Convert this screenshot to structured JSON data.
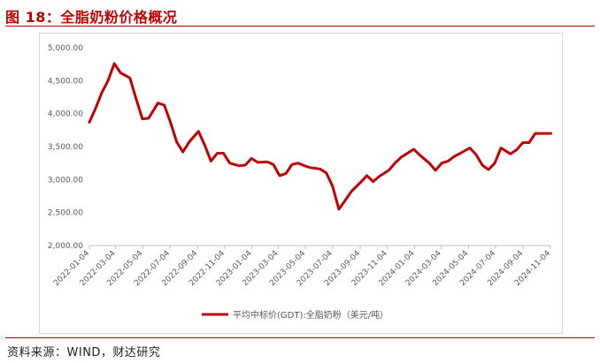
{
  "header": {
    "title": "图 18：全脂奶粉价格概况"
  },
  "footer": {
    "source": "资料来源：WIND，财达研究"
  },
  "colors": {
    "accent": "#c00000",
    "grid": "#d9d9d9",
    "series": "#c00000"
  },
  "chart_data": {
    "type": "line",
    "title": "",
    "xlabel": "",
    "ylabel": "",
    "ylim": [
      2000,
      5000
    ],
    "yticks": [
      "5,000.00",
      "4,500.00",
      "4,000.00",
      "3,500.00",
      "3,000.00",
      "2,500.00",
      "2,000.00"
    ],
    "ytick_values": [
      5000,
      4500,
      4000,
      3500,
      3000,
      2500,
      2000
    ],
    "xticks": [
      "2022-01-04",
      "2022-03-04",
      "2022-05-04",
      "2022-07-04",
      "2022-09-04",
      "2022-11-04",
      "2023-01-04",
      "2023-03-04",
      "2023-05-04",
      "2023-07-04",
      "2023-09-04",
      "2023-11-04",
      "2024-01-04",
      "2024-03-04",
      "2024-05-04",
      "2024-07-04",
      "2024-09-04",
      "2024-11-04"
    ],
    "grid": false,
    "legend_position": "bottom",
    "series": [
      {
        "name": "平均中标价(GDT):全脂奶粉（美元/吨）",
        "x": [
          "2022-01-04",
          "2022-01-18",
          "2022-02-01",
          "2022-02-15",
          "2022-03-01",
          "2022-03-15",
          "2022-04-05",
          "2022-04-19",
          "2022-05-03",
          "2022-05-17",
          "2022-06-07",
          "2022-06-21",
          "2022-07-05",
          "2022-07-19",
          "2022-08-02",
          "2022-08-16",
          "2022-09-06",
          "2022-09-20",
          "2022-10-04",
          "2022-10-18",
          "2022-11-01",
          "2022-11-15",
          "2022-12-06",
          "2022-12-20",
          "2023-01-03",
          "2023-01-17",
          "2023-02-07",
          "2023-02-21",
          "2023-03-07",
          "2023-03-21",
          "2023-04-04",
          "2023-04-18",
          "2023-05-02",
          "2023-05-16",
          "2023-06-06",
          "2023-06-20",
          "2023-07-04",
          "2023-07-18",
          "2023-08-01",
          "2023-08-15",
          "2023-09-05",
          "2023-09-19",
          "2023-10-03",
          "2023-10-17",
          "2023-11-07",
          "2023-11-21",
          "2023-12-05",
          "2023-12-19",
          "2024-01-02",
          "2024-01-16",
          "2024-02-06",
          "2024-02-20",
          "2024-03-05",
          "2024-03-19",
          "2024-04-02",
          "2024-04-16",
          "2024-05-07",
          "2024-05-21",
          "2024-06-04",
          "2024-06-18",
          "2024-07-02",
          "2024-07-16",
          "2024-08-06",
          "2024-08-20",
          "2024-09-03",
          "2024-09-17",
          "2024-10-01",
          "2024-10-15",
          "2024-11-05"
        ],
        "values": [
          3870,
          4080,
          4320,
          4500,
          4760,
          4620,
          4540,
          4220,
          3920,
          3930,
          4160,
          4130,
          3870,
          3570,
          3420,
          3570,
          3730,
          3520,
          3280,
          3400,
          3400,
          3250,
          3210,
          3220,
          3320,
          3260,
          3270,
          3230,
          3060,
          3090,
          3230,
          3250,
          3210,
          3180,
          3160,
          3100,
          2900,
          2550,
          2680,
          2820,
          2960,
          3060,
          2970,
          3050,
          3140,
          3250,
          3340,
          3400,
          3460,
          3370,
          3250,
          3140,
          3250,
          3280,
          3350,
          3400,
          3480,
          3380,
          3220,
          3150,
          3250,
          3480,
          3390,
          3450,
          3560,
          3560,
          3700,
          3700,
          3700
        ]
      }
    ]
  }
}
